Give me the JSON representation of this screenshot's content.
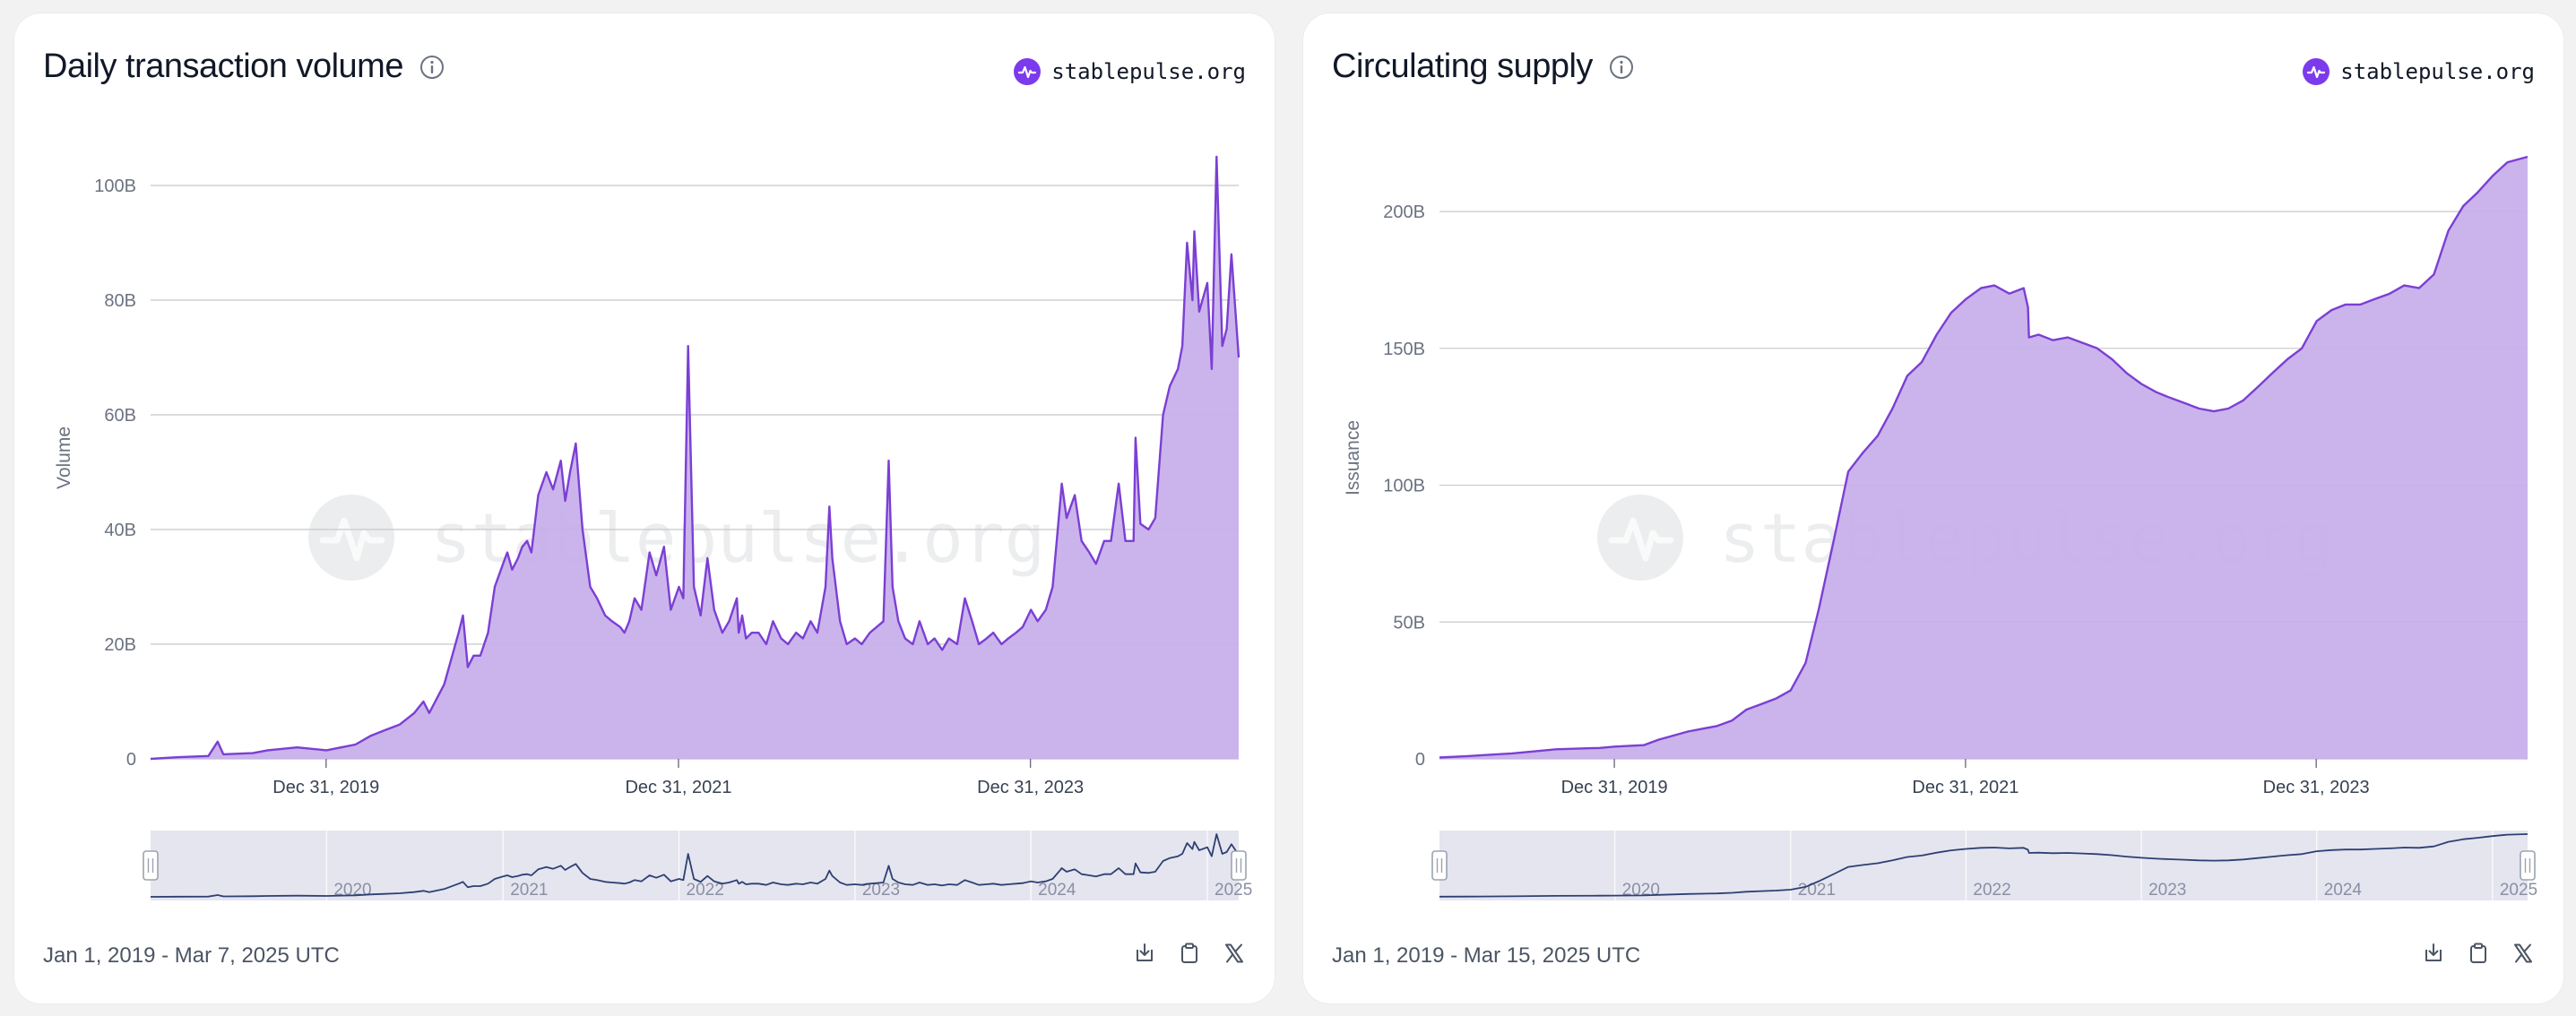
{
  "brand": {
    "name": "stablepulse.org",
    "color": "#7c3aed"
  },
  "colors": {
    "line": "#7b3fd4",
    "area": "#c7aeea",
    "grid": "#c8c8cc",
    "zoom_bg": "#e4e5ef",
    "zoom_line": "#2e3f72"
  },
  "icons": {
    "info": "info-circle-icon",
    "download": "download-icon",
    "copy": "clipboard-icon",
    "share": "x-logo-icon",
    "brand": "pulse-logo-icon"
  },
  "charts": [
    {
      "title": "Daily transaction volume",
      "date_range": "Jan 1, 2019 - Mar 7, 2025 UTC",
      "watermark": "stablepulse.org",
      "chart_data": {
        "type": "area",
        "title": "Daily transaction volume",
        "ylabel": "Volume",
        "xlabel": "",
        "x_domain": [
          "2019-01-01",
          "2025-03-07"
        ],
        "ylim": [
          0,
          105
        ],
        "unit": "B",
        "yticks": [
          {
            "value": 0,
            "label": "0"
          },
          {
            "value": 20,
            "label": "20B"
          },
          {
            "value": 40,
            "label": "40B"
          },
          {
            "value": 60,
            "label": "60B"
          },
          {
            "value": 80,
            "label": "80B"
          },
          {
            "value": 100,
            "label": "100B"
          }
        ],
        "xticks": [
          {
            "date": "2019-12-31",
            "label": "Dec 31, 2019"
          },
          {
            "date": "2021-12-31",
            "label": "Dec 31, 2021"
          },
          {
            "date": "2023-12-31",
            "label": "Dec 31, 2023"
          }
        ],
        "grid": true,
        "zoom_labels": [
          {
            "date": "2020-01-01",
            "label": "2020"
          },
          {
            "date": "2021-01-01",
            "label": "2021"
          },
          {
            "date": "2022-01-01",
            "label": "2022"
          },
          {
            "date": "2023-01-01",
            "label": "2023"
          },
          {
            "date": "2024-01-01",
            "label": "2024"
          },
          {
            "date": "2025-01-01",
            "label": "2025"
          }
        ],
        "series": [
          {
            "x": [
              "2019-01-01",
              "2019-03-01",
              "2019-05-01",
              "2019-05-20",
              "2019-06-01",
              "2019-08-01",
              "2019-09-01",
              "2019-11-01",
              "2020-01-01",
              "2020-03-01",
              "2020-04-01",
              "2020-05-01",
              "2020-06-01",
              "2020-07-01",
              "2020-07-20",
              "2020-08-01",
              "2020-09-01",
              "2020-10-01",
              "2020-10-10",
              "2020-10-20",
              "2020-11-01",
              "2020-11-15",
              "2020-12-01",
              "2020-12-15",
              "2021-01-01",
              "2021-01-10",
              "2021-01-20",
              "2021-02-01",
              "2021-02-10",
              "2021-02-20",
              "2021-03-01",
              "2021-03-15",
              "2021-04-01",
              "2021-04-15",
              "2021-05-01",
              "2021-05-10",
              "2021-05-20",
              "2021-06-01",
              "2021-06-15",
              "2021-07-01",
              "2021-07-15",
              "2021-08-01",
              "2021-08-15",
              "2021-09-01",
              "2021-09-10",
              "2021-09-20",
              "2021-10-01",
              "2021-10-15",
              "2021-11-01",
              "2021-11-15",
              "2021-12-01",
              "2021-12-15",
              "2022-01-01",
              "2022-01-10",
              "2022-01-20",
              "2022-02-01",
              "2022-02-15",
              "2022-03-01",
              "2022-03-15",
              "2022-04-01",
              "2022-04-15",
              "2022-05-01",
              "2022-05-05",
              "2022-05-12",
              "2022-05-20",
              "2022-06-01",
              "2022-06-15",
              "2022-07-01",
              "2022-07-15",
              "2022-08-01",
              "2022-08-15",
              "2022-09-01",
              "2022-09-15",
              "2022-10-01",
              "2022-10-15",
              "2022-11-01",
              "2022-11-09",
              "2022-11-15",
              "2022-12-01",
              "2022-12-15",
              "2023-01-01",
              "2023-01-15",
              "2023-02-01",
              "2023-02-15",
              "2023-03-01",
              "2023-03-12",
              "2023-03-20",
              "2023-04-01",
              "2023-04-15",
              "2023-05-01",
              "2023-05-15",
              "2023-06-01",
              "2023-06-15",
              "2023-07-01",
              "2023-07-15",
              "2023-08-01",
              "2023-08-17",
              "2023-09-01",
              "2023-09-15",
              "2023-10-01",
              "2023-10-15",
              "2023-11-01",
              "2023-11-15",
              "2023-12-01",
              "2023-12-15",
              "2024-01-01",
              "2024-01-15",
              "2024-02-01",
              "2024-02-15",
              "2024-03-01",
              "2024-03-05",
              "2024-03-15",
              "2024-04-01",
              "2024-04-15",
              "2024-05-01",
              "2024-05-15",
              "2024-06-01",
              "2024-06-15",
              "2024-07-01",
              "2024-07-15",
              "2024-08-01",
              "2024-08-05",
              "2024-08-15",
              "2024-09-01",
              "2024-09-15",
              "2024-10-01",
              "2024-10-15",
              "2024-11-01",
              "2024-11-10",
              "2024-11-20",
              "2024-12-01",
              "2024-12-05",
              "2024-12-15",
              "2025-01-01",
              "2025-01-10",
              "2025-01-20",
              "2025-02-01",
              "2025-02-10",
              "2025-02-20",
              "2025-03-07"
            ],
            "y": [
              0,
              0.3,
              0.5,
              3,
              0.8,
              1,
              1.5,
              2,
              1.5,
              2.5,
              4,
              5,
              6,
              8,
              10,
              8,
              13,
              22,
              25,
              16,
              18,
              18,
              22,
              30,
              34,
              36,
              33,
              35,
              37,
              38,
              36,
              46,
              50,
              47,
              52,
              45,
              50,
              55,
              40,
              30,
              28,
              25,
              24,
              23,
              22,
              24,
              28,
              26,
              36,
              32,
              37,
              26,
              30,
              28,
              72,
              30,
              25,
              35,
              26,
              22,
              24,
              28,
              22,
              25,
              21,
              22,
              22,
              20,
              24,
              21,
              20,
              22,
              21,
              24,
              22,
              30,
              44,
              35,
              24,
              20,
              21,
              20,
              22,
              23,
              24,
              52,
              30,
              24,
              21,
              20,
              24,
              20,
              21,
              19,
              21,
              20,
              28,
              24,
              20,
              21,
              22,
              20,
              21,
              22,
              23,
              26,
              24,
              26,
              30,
              44,
              48,
              42,
              46,
              38,
              36,
              34,
              38,
              38,
              48,
              38,
              38,
              56,
              41,
              40,
              42,
              60,
              65,
              68,
              72,
              90,
              80,
              92,
              78,
              83,
              68,
              105,
              72,
              75,
              88,
              70
            ]
          }
        ]
      }
    },
    {
      "title": "Circulating supply",
      "date_range": "Jan 1, 2019 - Mar 15, 2025 UTC",
      "watermark": "stablepulse.org",
      "chart_data": {
        "type": "area",
        "title": "Circulating supply",
        "ylabel": "Issuance",
        "xlabel": "",
        "x_domain": [
          "2019-01-01",
          "2025-03-15"
        ],
        "ylim": [
          0,
          220
        ],
        "unit": "B",
        "yticks": [
          {
            "value": 0,
            "label": "0"
          },
          {
            "value": 50,
            "label": "50B"
          },
          {
            "value": 100,
            "label": "100B"
          },
          {
            "value": 150,
            "label": "150B"
          },
          {
            "value": 200,
            "label": "200B"
          }
        ],
        "xticks": [
          {
            "date": "2019-12-31",
            "label": "Dec 31, 2019"
          },
          {
            "date": "2021-12-31",
            "label": "Dec 31, 2021"
          },
          {
            "date": "2023-12-31",
            "label": "Dec 31, 2023"
          }
        ],
        "grid": true,
        "zoom_labels": [
          {
            "date": "2020-01-01",
            "label": "2020"
          },
          {
            "date": "2021-01-01",
            "label": "2021"
          },
          {
            "date": "2022-01-01",
            "label": "2022"
          },
          {
            "date": "2023-01-01",
            "label": "2023"
          },
          {
            "date": "2024-01-01",
            "label": "2024"
          },
          {
            "date": "2025-01-01",
            "label": "2025"
          }
        ],
        "series": [
          {
            "x": [
              "2019-01-01",
              "2019-03-01",
              "2019-06-01",
              "2019-09-01",
              "2019-12-01",
              "2020-01-01",
              "2020-03-01",
              "2020-04-01",
              "2020-06-01",
              "2020-08-01",
              "2020-09-01",
              "2020-10-01",
              "2020-11-01",
              "2020-12-01",
              "2021-01-01",
              "2021-02-01",
              "2021-03-01",
              "2021-04-01",
              "2021-05-01",
              "2021-06-01",
              "2021-07-01",
              "2021-08-01",
              "2021-09-01",
              "2021-10-01",
              "2021-11-01",
              "2021-12-01",
              "2022-01-01",
              "2022-02-01",
              "2022-03-01",
              "2022-04-01",
              "2022-05-01",
              "2022-05-10",
              "2022-05-12",
              "2022-06-01",
              "2022-07-01",
              "2022-08-01",
              "2022-09-01",
              "2022-10-01",
              "2022-11-01",
              "2022-12-01",
              "2023-01-01",
              "2023-02-01",
              "2023-03-01",
              "2023-04-01",
              "2023-05-01",
              "2023-06-01",
              "2023-07-01",
              "2023-08-01",
              "2023-09-01",
              "2023-10-01",
              "2023-11-01",
              "2023-12-01",
              "2024-01-01",
              "2024-02-01",
              "2024-03-01",
              "2024-04-01",
              "2024-05-01",
              "2024-06-01",
              "2024-07-01",
              "2024-08-01",
              "2024-09-01",
              "2024-10-01",
              "2024-11-01",
              "2024-12-01",
              "2025-01-01",
              "2025-02-01",
              "2025-03-15"
            ],
            "y": [
              0.5,
              1,
              2,
              3.5,
              4,
              4.5,
              5,
              7,
              10,
              12,
              14,
              18,
              20,
              22,
              25,
              35,
              55,
              80,
              105,
              112,
              118,
              128,
              140,
              145,
              155,
              163,
              168,
              172,
              173,
              170,
              172,
              165,
              154,
              155,
              153,
              154,
              152,
              150,
              146,
              141,
              137,
              134,
              132,
              130,
              128,
              127,
              128,
              131,
              136,
              141,
              146,
              150,
              160,
              164,
              166,
              166,
              168,
              170,
              173,
              172,
              177,
              193,
              202,
              207,
              213,
              218,
              220
            ]
          }
        ]
      }
    }
  ]
}
